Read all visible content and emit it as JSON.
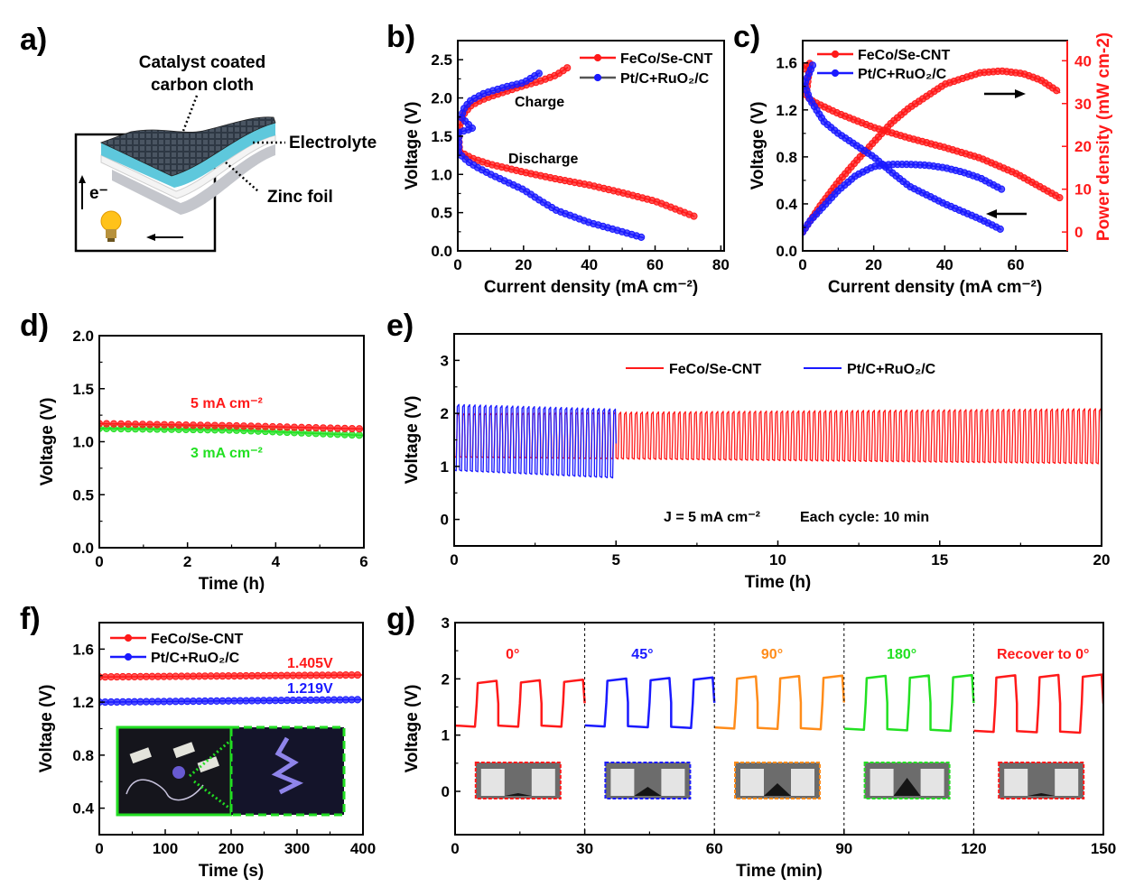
{
  "panel_labels": [
    "a)",
    "b)",
    "c)",
    "d)",
    "e)",
    "f)",
    "g)"
  ],
  "panel_a": {
    "label_catalyst_line1": "Catalyst coated",
    "label_catalyst_line2": "carbon cloth",
    "label_electrolyte": "Electrolyte",
    "label_zinc": "Zinc foil",
    "label_electron": "e⁻",
    "colors": {
      "carbon_cloth": "#2e3844",
      "electrolyte": "#5ec8dc",
      "zinc": "#f2f2f2",
      "bulb": "#ffc21a"
    }
  },
  "chart_data": [
    {
      "panel": "b)",
      "type": "line",
      "xlabel": "Current density (mA cm⁻²)",
      "ylabel": "Voltage (V)",
      "xlim": [
        0,
        81
      ],
      "ylim": [
        0,
        2.75
      ],
      "x_ticks": [
        0,
        20,
        40,
        60,
        80
      ],
      "x_tick_labels": [
        "0",
        "20",
        "40",
        "60",
        "80"
      ],
      "y_ticks": [
        0,
        0.5,
        1,
        1.5,
        2,
        2.5
      ],
      "y_tick_labels": [
        "0.0",
        "0.5",
        "1.0",
        "1.5",
        "2.0",
        "2.5"
      ],
      "annotations": [
        "Charge",
        "Discharge"
      ],
      "series": [
        {
          "name": "FeCo/Se-CNT",
          "color": "#ff1a1a",
          "charge": [
            [
              0.3,
              1.55
            ],
            [
              1,
              1.7
            ],
            [
              2,
              1.8
            ],
            [
              4,
              1.9
            ],
            [
              7,
              1.97
            ],
            [
              10,
              2.02
            ],
            [
              15,
              2.09
            ],
            [
              20,
              2.16
            ],
            [
              25,
              2.22
            ],
            [
              30,
              2.3
            ],
            [
              33.5,
              2.4
            ]
          ],
          "discharge": [
            [
              0.3,
              1.55
            ],
            [
              0.5,
              1.3
            ],
            [
              3,
              1.24
            ],
            [
              5,
              1.2
            ],
            [
              10,
              1.13
            ],
            [
              20,
              1.03
            ],
            [
              30,
              0.94
            ],
            [
              40,
              0.86
            ],
            [
              50,
              0.76
            ],
            [
              60,
              0.65
            ],
            [
              72,
              0.45
            ]
          ]
        },
        {
          "name": "Pt/C+RuO₂/C",
          "color": "#1a1aff",
          "charge": [
            [
              0.3,
              1.55
            ],
            [
              4.5,
              1.6
            ],
            [
              1,
              1.75
            ],
            [
              2,
              1.87
            ],
            [
              4,
              1.97
            ],
            [
              8,
              2.06
            ],
            [
              15,
              2.15
            ],
            [
              20,
              2.2
            ],
            [
              25,
              2.33
            ]
          ],
          "discharge": [
            [
              0.3,
              1.55
            ],
            [
              0.3,
              1.28
            ],
            [
              3,
              1.17
            ],
            [
              6,
              1.09
            ],
            [
              10,
              1.0
            ],
            [
              15,
              0.9
            ],
            [
              20,
              0.8
            ],
            [
              25,
              0.66
            ],
            [
              30,
              0.53
            ],
            [
              40,
              0.37
            ],
            [
              50,
              0.25
            ],
            [
              56.5,
              0.17
            ]
          ]
        }
      ]
    },
    {
      "panel": "c)",
      "type": "line",
      "xlabel": "Current density (mA cm⁻²)",
      "ylabel": "Voltage (V)",
      "y2label": "Power density (mW cm-2)",
      "xlim": [
        0,
        74.5
      ],
      "ylim": [
        0,
        1.79
      ],
      "y2lim": [
        -4.4,
        44.7
      ],
      "x_ticks": [
        0,
        20,
        40,
        60
      ],
      "x_tick_labels": [
        "0",
        "20",
        "40",
        "60"
      ],
      "y_ticks": [
        0,
        0.4,
        0.8,
        1.2,
        1.6
      ],
      "y_tick_labels": [
        "0.0",
        "0.4",
        "0.8",
        "1.2",
        "1.6"
      ],
      "y2_ticks": [
        0,
        10,
        20,
        30,
        40
      ],
      "y2_tick_labels": [
        "0",
        "10",
        "20",
        "30",
        "40"
      ],
      "y2_color": "#ff1a1a",
      "series": [
        {
          "name": "FeCo/Se-CNT",
          "color": "#ff1a1a",
          "voltage": [
            [
              0.3,
              1.55
            ],
            [
              2,
              1.6
            ],
            [
              1,
              1.32
            ],
            [
              3,
              1.27
            ],
            [
              10,
              1.17
            ],
            [
              20,
              1.05
            ],
            [
              30,
              0.96
            ],
            [
              40,
              0.88
            ],
            [
              50,
              0.79
            ],
            [
              60,
              0.66
            ],
            [
              72.5,
              0.45
            ]
          ],
          "power": [
            [
              0,
              0
            ],
            [
              5,
              6.2
            ],
            [
              10,
              11.7
            ],
            [
              15,
              16.5
            ],
            [
              20,
              21
            ],
            [
              25,
              25.5
            ],
            [
              30,
              29
            ],
            [
              40,
              34.5
            ],
            [
              50,
              37.2
            ],
            [
              56,
              37.6
            ],
            [
              62,
              37
            ],
            [
              67,
              35.5
            ],
            [
              72.5,
              32.5
            ]
          ]
        },
        {
          "name": "Pt/C+RuO₂/C",
          "color": "#1a1aff",
          "voltage": [
            [
              2.8,
              1.58
            ],
            [
              0.5,
              1.42
            ],
            [
              2,
              1.29
            ],
            [
              6,
              1.1
            ],
            [
              10,
              1.0
            ],
            [
              20,
              0.8
            ],
            [
              25,
              0.67
            ],
            [
              30,
              0.55
            ],
            [
              40,
              0.4
            ],
            [
              50,
              0.27
            ],
            [
              56,
              0.18
            ]
          ],
          "power": [
            [
              0,
              0
            ],
            [
              2,
              2.5
            ],
            [
              5,
              5.2
            ],
            [
              10,
              9.7
            ],
            [
              15,
              13.2
            ],
            [
              20,
              15.3
            ],
            [
              25,
              15.8
            ],
            [
              30,
              15.8
            ],
            [
              35,
              15.6
            ],
            [
              40,
              15.0
            ],
            [
              45,
              14.0
            ],
            [
              50,
              12.6
            ],
            [
              56,
              10
            ]
          ]
        }
      ]
    },
    {
      "panel": "d)",
      "type": "line",
      "xlabel": "Time (h)",
      "ylabel": "Voltage (V)",
      "xlim": [
        0,
        6
      ],
      "ylim": [
        0,
        2
      ],
      "x_ticks": [
        0,
        2,
        4,
        6
      ],
      "x_tick_labels": [
        "0",
        "2",
        "4",
        "6"
      ],
      "y_ticks": [
        0,
        0.5,
        1,
        1.5,
        2
      ],
      "y_tick_labels": [
        "0.0",
        "0.5",
        "1.0",
        "1.5",
        "2.0"
      ],
      "series": [
        {
          "name": "5 mA cm⁻²",
          "color": "#ff1a1a",
          "points": [
            [
              0,
              1.17
            ],
            [
              3,
              1.15
            ],
            [
              6,
              1.12
            ]
          ]
        },
        {
          "name": "3 mA cm⁻²",
          "color": "#22e022",
          "points": [
            [
              0,
              1.125
            ],
            [
              3,
              1.11
            ],
            [
              6,
              1.06
            ]
          ]
        }
      ]
    },
    {
      "panel": "e)",
      "type": "line",
      "xlabel": "Time (h)",
      "ylabel": "Voltage (V)",
      "xlim": [
        0,
        20
      ],
      "ylim": [
        -0.5,
        3.5
      ],
      "x_ticks": [
        0,
        5,
        10,
        15,
        20
      ],
      "x_tick_labels": [
        "0",
        "5",
        "10",
        "15",
        "20"
      ],
      "y_ticks": [
        0,
        1,
        2,
        3
      ],
      "y_tick_labels": [
        "0",
        "1",
        "2",
        "3"
      ],
      "annotations": [
        "J = 5 mA cm⁻²",
        "Each cycle: 10 min"
      ],
      "cycle_minutes": 10,
      "series": [
        {
          "name": "FeCo/Se-CNT",
          "color": "#ff1a1a",
          "time_range": [
            0,
            20
          ],
          "charge_voltage": [
            2.0,
            2.09
          ],
          "discharge_voltage": [
            1.17,
            1.05
          ]
        },
        {
          "name": "Pt/C+RuO₂/C",
          "color": "#1a1aff",
          "time_range": [
            0,
            4.92
          ],
          "charge_voltage": [
            2.17,
            2.08
          ],
          "discharge_voltage": [
            0.92,
            0.78
          ]
        }
      ]
    },
    {
      "panel": "f)",
      "type": "line",
      "xlabel": "Time (s)",
      "ylabel": "Voltage (V)",
      "xlim": [
        0,
        400
      ],
      "ylim": [
        0.2,
        1.8
      ],
      "x_ticks": [
        0,
        100,
        200,
        300,
        400
      ],
      "x_tick_labels": [
        "0",
        "100",
        "200",
        "300",
        "400"
      ],
      "y_ticks": [
        0.4,
        0.8,
        1.2,
        1.6
      ],
      "y_tick_labels": [
        "0.4",
        "0.8",
        "1.2",
        "1.6"
      ],
      "series": [
        {
          "name": "FeCo/Se-CNT",
          "color": "#ff1a1a",
          "points": [
            [
              0,
              1.39
            ],
            [
              400,
              1.405
            ]
          ],
          "value_label": "1.405V"
        },
        {
          "name": "Pt/C+RuO₂/C",
          "color": "#1a1aff",
          "points": [
            [
              0,
              1.2
            ],
            [
              400,
              1.219
            ]
          ],
          "value_label": "1.219V"
        }
      ],
      "inset_border_color": "#22dd22"
    },
    {
      "panel": "g)",
      "type": "line",
      "xlabel": "Time (min)",
      "ylabel": "Voltage (V)",
      "xlim": [
        0,
        150
      ],
      "ylim": [
        -0.77,
        3
      ],
      "x_ticks": [
        0,
        30,
        60,
        90,
        120,
        150
      ],
      "x_tick_labels": [
        "0",
        "30",
        "60",
        "90",
        "120",
        "150"
      ],
      "y_ticks": [
        0,
        1,
        2,
        3
      ],
      "y_tick_labels": [
        "0",
        "1",
        "2",
        "3"
      ],
      "cycle_minutes": 10,
      "segments": [
        {
          "label": "0°",
          "color": "#ff1a1a",
          "time_range": [
            0,
            30
          ],
          "charge_voltage": [
            1.96,
            1.99
          ],
          "discharge_voltage": [
            1.15,
            1.15
          ]
        },
        {
          "label": "45°",
          "color": "#1a1aff",
          "time_range": [
            30,
            60
          ],
          "charge_voltage": [
            2.0,
            2.03
          ],
          "discharge_voltage": [
            1.16,
            1.12
          ]
        },
        {
          "label": "90°",
          "color": "#ff8c1a",
          "time_range": [
            60,
            90
          ],
          "charge_voltage": [
            2.04,
            2.06
          ],
          "discharge_voltage": [
            1.12,
            1.1
          ]
        },
        {
          "label": "180°",
          "color": "#22e022",
          "time_range": [
            90,
            120
          ],
          "charge_voltage": [
            2.05,
            2.07
          ],
          "discharge_voltage": [
            1.1,
            1.07
          ]
        },
        {
          "label": "Recover to 0°",
          "color": "#ff1a1a",
          "time_range": [
            120,
            150
          ],
          "charge_voltage": [
            2.06,
            2.08
          ],
          "discharge_voltage": [
            1.06,
            1.04
          ]
        }
      ]
    }
  ]
}
